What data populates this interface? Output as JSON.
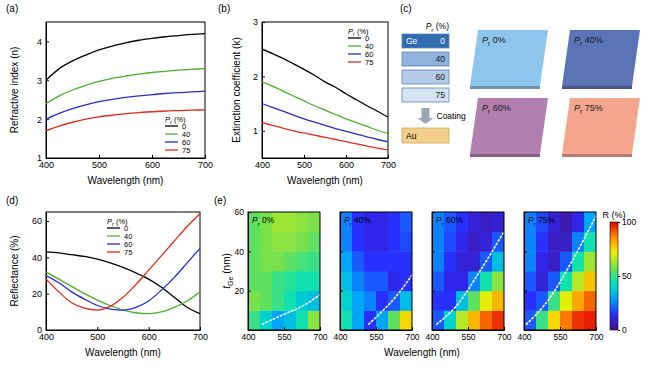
{
  "chart_data": [
    {
      "type": "line",
      "panel_label": "(a)",
      "xlabel": "Wavelength (nm)",
      "ylabel": "Refractive index (n)",
      "legend_title": "Pr (%)",
      "legend": "lower right",
      "x": [
        400,
        425,
        450,
        475,
        500,
        525,
        550,
        575,
        600,
        625,
        650,
        675,
        700
      ],
      "xlim": [
        400,
        700
      ],
      "xticks": [
        400,
        500,
        600,
        700
      ],
      "ylim": [
        1,
        4.5
      ],
      "yticks": [
        1,
        2,
        3,
        4
      ],
      "series": [
        {
          "name": "0",
          "color": "#000000",
          "values": [
            3.0,
            3.3,
            3.5,
            3.65,
            3.78,
            3.88,
            3.96,
            4.03,
            4.08,
            4.12,
            4.15,
            4.18,
            4.2
          ]
        },
        {
          "name": "40",
          "color": "#4caf2a",
          "values": [
            2.4,
            2.6,
            2.75,
            2.87,
            2.97,
            3.05,
            3.11,
            3.16,
            3.2,
            3.23,
            3.26,
            3.28,
            3.3
          ]
        },
        {
          "name": "60",
          "color": "#2b2bd0",
          "values": [
            2.0,
            2.15,
            2.27,
            2.37,
            2.45,
            2.51,
            2.56,
            2.6,
            2.63,
            2.66,
            2.68,
            2.7,
            2.72
          ]
        },
        {
          "name": "75",
          "color": "#e02a1a",
          "values": [
            1.7,
            1.82,
            1.92,
            2.0,
            2.06,
            2.1,
            2.14,
            2.17,
            2.19,
            2.21,
            2.22,
            2.23,
            2.24
          ]
        }
      ]
    },
    {
      "type": "line",
      "panel_label": "(b)",
      "xlabel": "Wavelength (nm)",
      "ylabel": "Extinction coefficient (k)",
      "legend_title": "Pr (%)",
      "legend": "upper right",
      "x": [
        400,
        425,
        450,
        475,
        500,
        525,
        550,
        575,
        600,
        625,
        650,
        675,
        700
      ],
      "xlim": [
        400,
        700
      ],
      "xticks": [
        400,
        500,
        600,
        700
      ],
      "ylim": [
        0.5,
        3
      ],
      "yticks": [
        1,
        2,
        3
      ],
      "series": [
        {
          "name": "0",
          "color": "#000000",
          "values": [
            2.5,
            2.42,
            2.33,
            2.23,
            2.13,
            2.02,
            1.9,
            1.8,
            1.68,
            1.57,
            1.46,
            1.36,
            1.25
          ]
        },
        {
          "name": "40",
          "color": "#4caf2a",
          "values": [
            1.9,
            1.82,
            1.73,
            1.64,
            1.55,
            1.46,
            1.38,
            1.3,
            1.22,
            1.15,
            1.08,
            1.01,
            0.95
          ]
        },
        {
          "name": "60",
          "color": "#2b2bd0",
          "values": [
            1.5,
            1.43,
            1.36,
            1.29,
            1.22,
            1.16,
            1.1,
            1.04,
            0.99,
            0.94,
            0.89,
            0.84,
            0.8
          ]
        },
        {
          "name": "75",
          "color": "#e02a1a",
          "values": [
            1.15,
            1.1,
            1.05,
            1.0,
            0.96,
            0.92,
            0.88,
            0.84,
            0.8,
            0.76,
            0.72,
            0.68,
            0.65
          ]
        }
      ]
    },
    {
      "type": "line",
      "panel_label": "(d)",
      "xlabel": "Wavelength (nm)",
      "ylabel": "Reflectance (%)",
      "legend_title": "Pr (%)",
      "legend": "upper center",
      "x": [
        400,
        425,
        450,
        475,
        500,
        525,
        550,
        575,
        600,
        625,
        650,
        675,
        700
      ],
      "xlim": [
        400,
        700
      ],
      "xticks": [
        400,
        500,
        600,
        700
      ],
      "ylim": [
        0,
        65
      ],
      "yticks": [
        0,
        20,
        40,
        60
      ],
      "series": [
        {
          "name": "0",
          "color": "#000000",
          "values": [
            43,
            42.5,
            41.5,
            40.5,
            39,
            37,
            34.5,
            31.5,
            28,
            23.5,
            18,
            12.5,
            9
          ]
        },
        {
          "name": "40",
          "color": "#4caf2a",
          "values": [
            32,
            28,
            24,
            20,
            16.5,
            13.5,
            11,
            9.5,
            9,
            10,
            12.5,
            16,
            21
          ]
        },
        {
          "name": "60",
          "color": "#2b2bd0",
          "values": [
            30,
            26,
            21,
            17,
            13.5,
            11.5,
            11,
            12.5,
            16,
            22,
            29,
            37,
            45
          ]
        },
        {
          "name": "75",
          "color": "#e02a1a",
          "values": [
            28,
            21,
            15,
            12,
            11,
            13,
            18,
            25,
            33,
            41,
            49,
            57,
            64
          ]
        }
      ]
    },
    {
      "type": "heatmap",
      "panel_label": "(e)",
      "xlabel": "Wavelength (nm)",
      "ylabel": "tGe (nm)",
      "xlim": [
        400,
        700
      ],
      "xticks": [
        400,
        550,
        700
      ],
      "ylim": [
        0,
        60
      ],
      "yticks": [
        20,
        40,
        60
      ],
      "x_edges": [
        400,
        450,
        500,
        550,
        600,
        650,
        700
      ],
      "y_edges": [
        0,
        10,
        20,
        30,
        40,
        50,
        60
      ],
      "colorbar": {
        "label": "R (%)",
        "range": [
          0,
          100
        ],
        "ticks": [
          0,
          50,
          100
        ]
      },
      "panels": [
        {
          "title": "Pr 0%",
          "values": [
            [
              50,
              40,
              30,
              35,
              45,
              60
            ],
            [
              58,
              55,
              50,
              45,
              38,
              35
            ],
            [
              55,
              55,
              50,
              48,
              45,
              45
            ],
            [
              55,
              58,
              58,
              55,
              52,
              50
            ],
            [
              55,
              58,
              60,
              60,
              58,
              55
            ],
            [
              55,
              58,
              62,
              62,
              60,
              58
            ]
          ],
          "min_line": {
            "x": [
              460,
              550,
              625,
              700
            ],
            "y": [
              3,
              8,
              12,
              18
            ],
            "color": "#ffffff",
            "line_style": "dotted"
          }
        },
        {
          "title": "Pr 40%",
          "values": [
            [
              45,
              30,
              15,
              30,
              55,
              75
            ],
            [
              40,
              30,
              25,
              15,
              20,
              35
            ],
            [
              35,
              25,
              20,
              20,
              12,
              15
            ],
            [
              30,
              20,
              15,
              15,
              15,
              15
            ],
            [
              25,
              15,
              12,
              12,
              15,
              18
            ],
            [
              25,
              15,
              12,
              12,
              15,
              20
            ]
          ],
          "min_line": {
            "x": [
              520,
              580,
              640,
              700
            ],
            "y": [
              3,
              10,
              18,
              28
            ],
            "color": "#ffffff",
            "line_style": "dotted"
          }
        },
        {
          "title": "Pr 60%",
          "values": [
            [
              20,
              40,
              65,
              80,
              90,
              95
            ],
            [
              15,
              15,
              35,
              55,
              70,
              80
            ],
            [
              20,
              12,
              12,
              25,
              45,
              60
            ],
            [
              25,
              15,
              10,
              10,
              20,
              35
            ],
            [
              25,
              18,
              12,
              8,
              10,
              20
            ],
            [
              25,
              20,
              15,
              10,
              8,
              10
            ]
          ],
          "min_line": {
            "x": [
              420,
              500,
              600,
              700
            ],
            "y": [
              3,
              12,
              30,
              50
            ],
            "color": "#ffffff",
            "line_style": "dotted"
          }
        },
        {
          "title": "Pr 75%",
          "values": [
            [
              20,
              50,
              75,
              88,
              95,
              97
            ],
            [
              15,
              20,
              50,
              70,
              82,
              90
            ],
            [
              20,
              10,
              20,
              45,
              65,
              78
            ],
            [
              25,
              12,
              8,
              20,
              45,
              62
            ],
            [
              25,
              15,
              8,
              8,
              25,
              45
            ],
            [
              25,
              18,
              10,
              6,
              12,
              30
            ]
          ],
          "min_line": {
            "x": [
              410,
              500,
              600,
              700
            ],
            "y": [
              3,
              15,
              35,
              58
            ],
            "color": "#ffffff",
            "line_style": "dotted"
          }
        }
      ]
    }
  ],
  "diagram": {
    "panel_label": "(c)",
    "stack_title": "Pr (%)",
    "layers": [
      {
        "material": "Ge",
        "pr": 0,
        "color": "#2f6db0"
      },
      {
        "pr": 40,
        "color": "#8fb3dc"
      },
      {
        "pr": 60,
        "color": "#b3cbe7"
      },
      {
        "pr": 75,
        "color": "#d5e4f3"
      }
    ],
    "arrow_label": "Coating",
    "substrate": "Au",
    "substrate_color": "#f3d08a",
    "samples": [
      {
        "label": "Pr 0%",
        "color": "#8ec5ea"
      },
      {
        "label": "Pr 40%",
        "color": "#5b74b5"
      },
      {
        "label": "Pr 60%",
        "color": "#b27fb0"
      },
      {
        "label": "Pr 75%",
        "color": "#f4a58e"
      }
    ]
  }
}
